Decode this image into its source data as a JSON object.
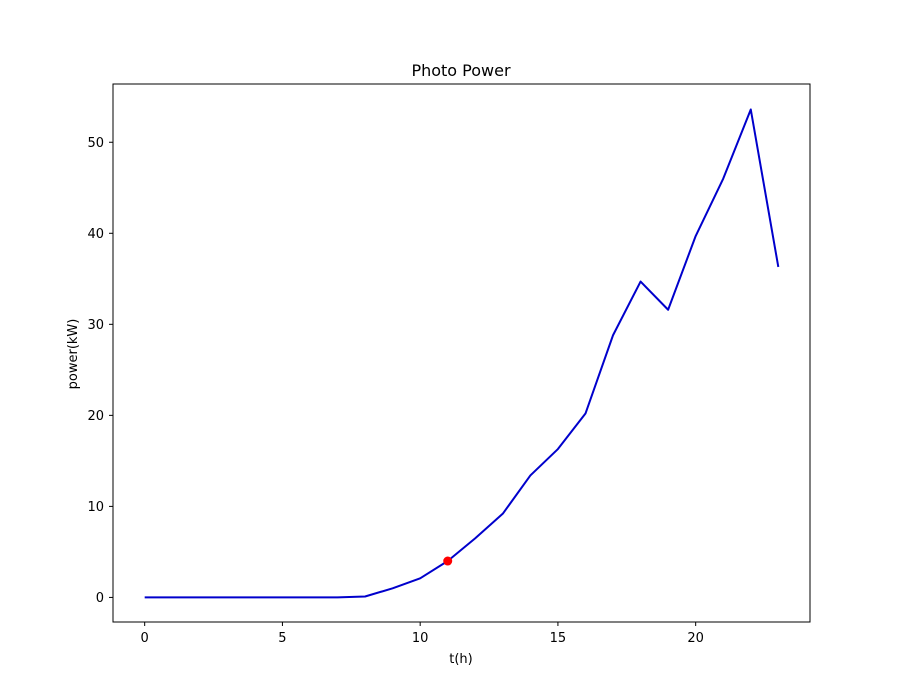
{
  "chart_data": {
    "type": "line",
    "title": "Photo Power",
    "xlabel": "t(h)",
    "ylabel": "power(kW)",
    "xlim": [
      -1.15,
      24.15
    ],
    "ylim": [
      -2.7,
      56.4
    ],
    "xticks": [
      0,
      5,
      10,
      15,
      20
    ],
    "yticks": [
      0,
      10,
      20,
      30,
      40,
      50
    ],
    "grid": false,
    "series": [
      {
        "color": "#0000cc",
        "x": [
          0,
          1,
          2,
          3,
          4,
          5,
          6,
          7,
          8,
          9,
          10,
          11,
          12,
          13,
          14,
          15,
          16,
          17,
          18,
          19,
          20,
          21,
          22,
          23
        ],
        "values": [
          0,
          0,
          0,
          0,
          0,
          0,
          0,
          0,
          0.1,
          1.0,
          2.1,
          4.0,
          6.5,
          9.2,
          13.4,
          16.3,
          20.2,
          28.8,
          34.7,
          31.6,
          39.7,
          46.0,
          53.6,
          36.3
        ]
      }
    ],
    "highlight_point": {
      "x": 11,
      "y": 4.0,
      "color": "#ff0000"
    }
  }
}
